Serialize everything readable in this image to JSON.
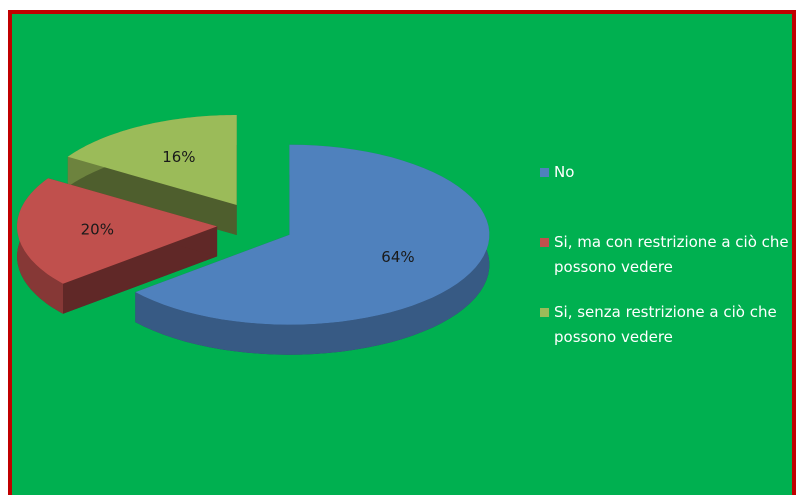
{
  "chart_data": {
    "type": "pie",
    "categories": [
      "No",
      "Si, ma con restrizione a ciò che possono vedere",
      "Si, senza restrizione a ciò che possono vedere"
    ],
    "values": [
      64,
      20,
      16
    ],
    "value_labels": [
      "64%",
      "20%",
      "16%"
    ],
    "colors": [
      "#4f81bd",
      "#c0504d",
      "#9bbb59"
    ],
    "legend": "right"
  }
}
